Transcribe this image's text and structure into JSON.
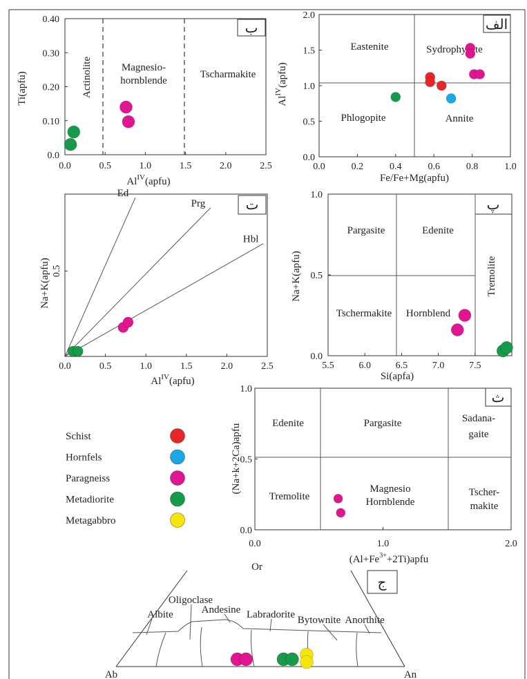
{
  "legend": [
    {
      "name": "Schist",
      "color": "#e8262a"
    },
    {
      "name": "Hornfels",
      "color": "#1aa8e6"
    },
    {
      "name": "Paragneiss",
      "color": "#e0158f"
    },
    {
      "name": "Metadiorite",
      "color": "#179a4a"
    },
    {
      "name": "Metagabbro",
      "color": "#f5e50c"
    }
  ],
  "chart_data": [
    {
      "id": "b",
      "type": "scatter",
      "tag": "ب",
      "xlabel_main": "Al",
      "xlabel_sup": "IV",
      "xlabel_tail": "(apfu)",
      "ylabel": "Ti(apfu)",
      "xlim": [
        0,
        2.5
      ],
      "ylim": [
        0,
        0.4
      ],
      "xticks": [
        "0.0",
        "0.5",
        "1.0",
        "1.5",
        "2.0",
        "2.5"
      ],
      "yticks": [
        "0.0",
        "0.10",
        "0.20",
        "0.30",
        "0.40"
      ],
      "fields": [
        {
          "label": "Actinolite"
        },
        {
          "label": "Magnesio-"
        },
        {
          "label": "hornblende"
        },
        {
          "label": "Tscharmakite"
        }
      ],
      "boundaries": [
        0.5,
        1.5
      ],
      "points": [
        {
          "x": 0.11,
          "y": 0.067,
          "group": "Metadiorite"
        },
        {
          "x": 0.07,
          "y": 0.03,
          "group": "Metadiorite"
        },
        {
          "x": 0.76,
          "y": 0.14,
          "group": "Paragneiss"
        },
        {
          "x": 0.79,
          "y": 0.097,
          "group": "Paragneiss"
        }
      ]
    },
    {
      "id": "alef",
      "type": "scatter",
      "tag": "الف",
      "xlabel": "Fe/Fe+Mg(apfu)",
      "ylabel_main": "Al",
      "ylabel_sup": "IV",
      "ylabel_tail": "(apfu)",
      "xlim": [
        0,
        1
      ],
      "ylim": [
        0,
        2
      ],
      "xticks": [
        "0.0",
        "0.2",
        "0.4",
        "0.6",
        "0.8",
        "1.0"
      ],
      "yticks": [
        "0.0",
        "0.5",
        "1.0",
        "1.5",
        "2.0"
      ],
      "fields": [
        {
          "label": "Eastenite"
        },
        {
          "label": "Sydrophyllite"
        },
        {
          "label": "Phlogopite"
        },
        {
          "label": "Annite"
        }
      ],
      "points": [
        {
          "x": 0.79,
          "y": 1.53,
          "group": "Paragneiss"
        },
        {
          "x": 0.79,
          "y": 1.45,
          "group": "Paragneiss"
        },
        {
          "x": 0.81,
          "y": 1.16,
          "group": "Paragneiss"
        },
        {
          "x": 0.84,
          "y": 1.16,
          "group": "Paragneiss"
        },
        {
          "x": 0.58,
          "y": 1.12,
          "group": "Schist"
        },
        {
          "x": 0.58,
          "y": 1.05,
          "group": "Schist"
        },
        {
          "x": 0.64,
          "y": 1.0,
          "group": "Schist"
        },
        {
          "x": 0.69,
          "y": 0.82,
          "group": "Hornfels"
        },
        {
          "x": 0.4,
          "y": 0.84,
          "group": "Metadiorite"
        }
      ]
    },
    {
      "id": "t",
      "type": "scatter",
      "tag": "ت",
      "xlabel_main": "Al",
      "xlabel_sup": "IV",
      "xlabel_tail": "(apfu)",
      "ylabel": "Na+K(apfu)",
      "xlim": [
        0,
        2.5
      ],
      "ylim": [
        0,
        0.95
      ],
      "xticks": [
        "0.0",
        "0.5",
        "1.0",
        "1.5",
        "2.0",
        "2.5"
      ],
      "yticks": [
        "0.5"
      ],
      "lines": [
        {
          "label": "Ed",
          "x2": 0.87,
          "y2": 0.93
        },
        {
          "label": "Prg",
          "x2": 1.8,
          "y2": 0.87
        },
        {
          "label": "Hbl",
          "x2": 2.45,
          "y2": 0.66
        }
      ],
      "points": [
        {
          "x": 0.1,
          "y": 0.03,
          "group": "Metadiorite"
        },
        {
          "x": 0.16,
          "y": 0.03,
          "group": "Metadiorite"
        },
        {
          "x": 0.72,
          "y": 0.17,
          "group": "Paragneiss"
        },
        {
          "x": 0.78,
          "y": 0.2,
          "group": "Paragneiss"
        }
      ]
    },
    {
      "id": "p",
      "type": "scatter",
      "tag": "پ",
      "xlabel": "Si(apfa)",
      "ylabel": "Na+K(apfu)",
      "xlim": [
        5.5,
        8.0
      ],
      "ylim": [
        0,
        1.0
      ],
      "xticks": [
        "5.5",
        "6.0",
        "6.5",
        "7.0",
        "7.5"
      ],
      "yticks": [
        "0.0",
        "0.5",
        "1.0"
      ],
      "fields": [
        {
          "label": "Pargasite"
        },
        {
          "label": "Edenite"
        },
        {
          "label": "Tremolite"
        },
        {
          "label": "Tschermakite"
        },
        {
          "label": "Hornblend"
        }
      ],
      "points": [
        {
          "x": 7.36,
          "y": 0.25,
          "group": "Paragneiss"
        },
        {
          "x": 7.26,
          "y": 0.16,
          "group": "Paragneiss"
        },
        {
          "x": 7.88,
          "y": 0.03,
          "group": "Metadiorite"
        },
        {
          "x": 7.93,
          "y": 0.05,
          "group": "Metadiorite"
        }
      ]
    },
    {
      "id": "th",
      "type": "scatter",
      "tag": "ث",
      "xlabel_main": "(Al+Fe",
      "xlabel_sup": "3+",
      "xlabel_tail": "+2Ti)apfu",
      "ylabel": "(Na+k+2Ca)apfu",
      "xlim": [
        0,
        2.0
      ],
      "ylim": [
        0,
        1.0
      ],
      "xticks": [
        "0.0",
        "1.0",
        "2.0"
      ],
      "yticks": [
        "0.0",
        "0.5",
        "1.0"
      ],
      "fields": [
        {
          "label": "Edenite"
        },
        {
          "label": "Pargasite"
        },
        {
          "label": "Sadana-"
        },
        {
          "label": "gaite"
        },
        {
          "label": "Tremolite"
        },
        {
          "label": "Magnesio"
        },
        {
          "label": "Hornblende"
        },
        {
          "label": "Tscher-"
        },
        {
          "label": "makite"
        }
      ],
      "points": [
        {
          "x": 0.65,
          "y": 0.22,
          "group": "Paragneiss"
        },
        {
          "x": 0.67,
          "y": 0.12,
          "group": "Paragneiss"
        }
      ]
    },
    {
      "id": "j",
      "type": "scatter",
      "tag": "ج",
      "vertices": {
        "top": "Or",
        "left": "Ab",
        "right": "An"
      },
      "fields": [
        {
          "label": "Oligoclase"
        },
        {
          "label": "Albite"
        },
        {
          "label": "Andesine"
        },
        {
          "label": "Labradorite"
        },
        {
          "label": "Bytownite"
        },
        {
          "label": "Anorthite"
        }
      ],
      "points": [
        {
          "an": 0.42,
          "or": 0.04,
          "group": "Paragneiss"
        },
        {
          "an": 0.45,
          "or": 0.04,
          "group": "Paragneiss"
        },
        {
          "an": 0.58,
          "or": 0.04,
          "group": "Metadiorite"
        },
        {
          "an": 0.61,
          "or": 0.04,
          "group": "Metadiorite"
        },
        {
          "an": 0.66,
          "or": 0.065,
          "group": "Metagabbro"
        },
        {
          "an": 0.66,
          "or": 0.025,
          "group": "Metagabbro"
        }
      ]
    }
  ]
}
